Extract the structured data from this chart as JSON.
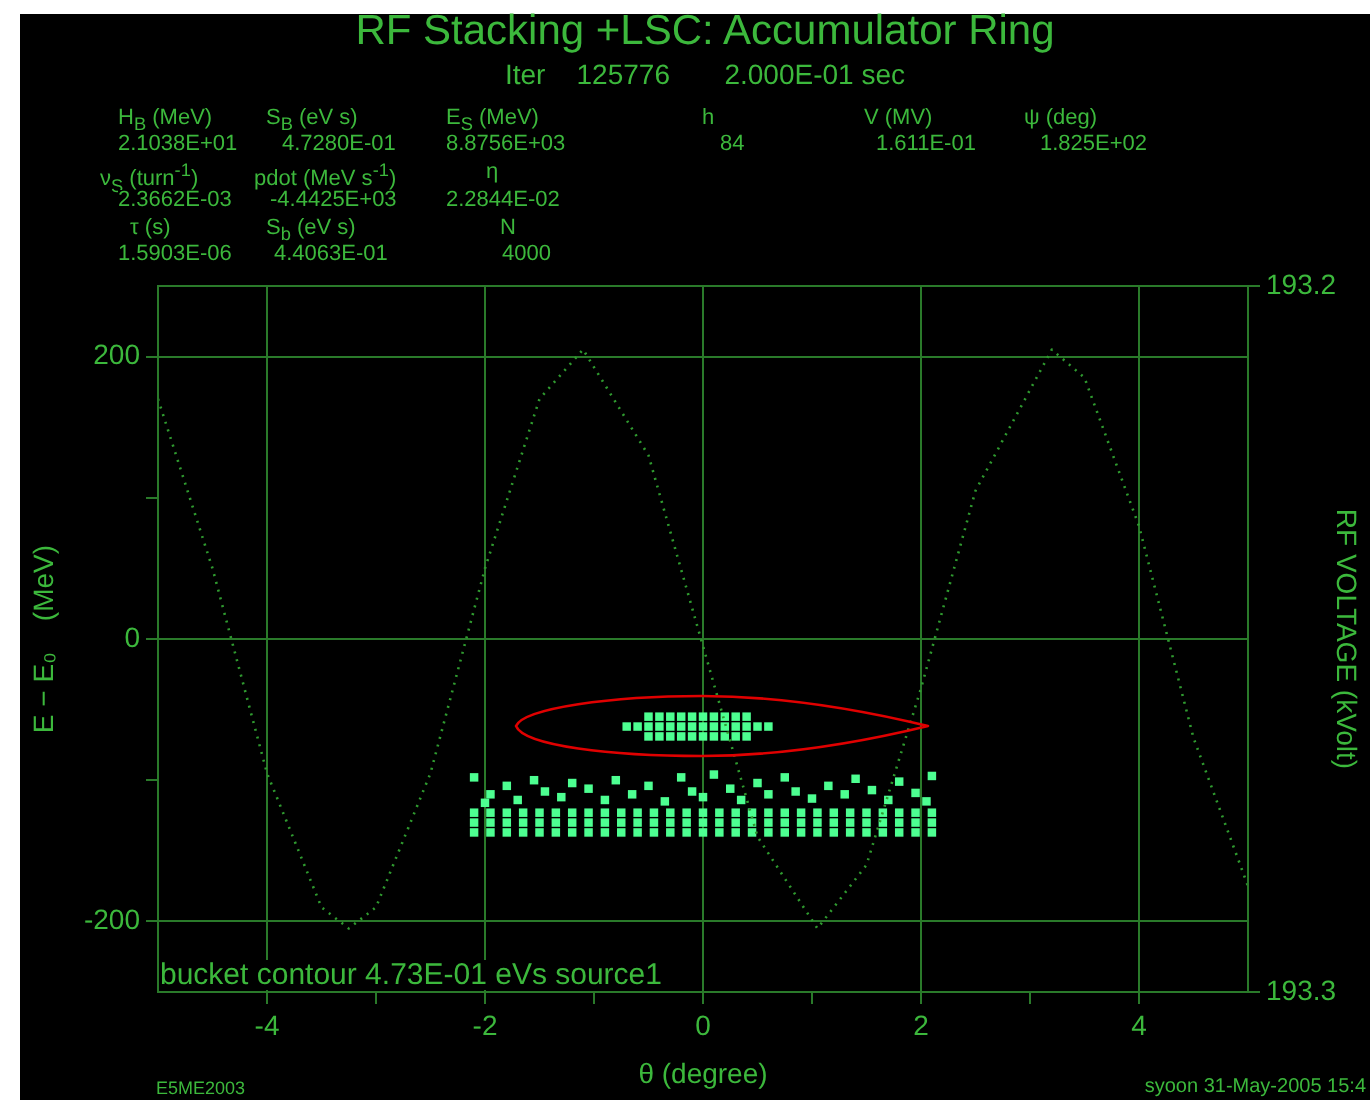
{
  "chart_data": {
    "type": "scatter",
    "title": "RF Stacking +LSC: Accumulator Ring",
    "subtitle": "Iter    125776       2.000E-01 sec",
    "xlabel": "θ (degree)",
    "ylabel": "E − E₀    (MeV)",
    "y2label": "RF VOLTAGE (kVolt)",
    "annotations": [
      "H$_{B}$ (MeV)",
      "S$_{B}$ (eV s)",
      "E$_{S}$ (MeV)",
      "h",
      "V (MV)",
      "ψ (deg)",
      "2.1038E+01",
      "4.7280E-01",
      "8.8756E+03",
      "84",
      "1.611E-01",
      "1.825E+02",
      "ν$_{S}$ (turn$^{-1}$)",
      "pdot (MeV s$^{-1}$)",
      "η",
      "2.3662E-03",
      "-4.4425E+03",
      "2.2844E-02",
      "τ (s)",
      "S$_{b}$ (eV s)",
      "N",
      "1.5903E-06",
      "4.4063E-01",
      "4000",
      "bucket contour 4.73E-01 eVs source1",
      "E5ME2003",
      "syoon 31-May-2005 15:4"
    ],
    "xlim": [
      -5,
      5
    ],
    "xticks": [
      -4,
      {
        "value": -3,
        "label": null
      },
      -2,
      {
        "value": -1,
        "label": null
      },
      0,
      {
        "value": 1,
        "label": null
      },
      2,
      {
        "value": 3,
        "label": null
      },
      4
    ],
    "ylim": [
      -250,
      250
    ],
    "yticks": [
      -200,
      {
        "value": -100,
        "label": null
      },
      0,
      {
        "value": 100,
        "label": null
      },
      200
    ],
    "y2lim": [
      193.3,
      193.2
    ],
    "y2ticks": [
      193.2,
      193.3
    ],
    "grid": true,
    "series": [
      {
        "type": "line",
        "axis": "y2",
        "color": "#2f9a2f",
        "marker": "none",
        "line_style": "dotted",
        "x": [
          -5,
          -4.5,
          -4,
          -3.5,
          -3.25,
          -3,
          -2.5,
          -2,
          -1.5,
          -1.1,
          -0.5,
          0,
          0.5,
          1.05,
          1.5,
          2,
          2.5,
          3.2,
          3.5,
          4,
          4.5,
          5
        ],
        "values": [
          193.216,
          193.24,
          193.269,
          193.288,
          193.291,
          193.288,
          193.269,
          193.24,
          193.216,
          193.209,
          193.224,
          193.251,
          193.278,
          193.291,
          193.282,
          193.257,
          193.229,
          193.209,
          193.213,
          193.234,
          193.264,
          193.285
        ]
      },
      {
        "color": "#4dff91",
        "marker": "square",
        "x": [
          -0.5,
          -0.4,
          -0.3,
          -0.2,
          -0.1,
          0,
          0.1,
          0.2,
          0.3,
          0.4,
          -0.7,
          -0.6,
          -0.5,
          -0.4,
          -0.3,
          -0.2,
          -0.1,
          0,
          0.1,
          0.2,
          0.3,
          0.4,
          0.5,
          0.6,
          -0.5,
          -0.4,
          -0.3,
          -0.2,
          -0.1,
          0,
          0.1,
          0.2,
          0.3,
          0.4
        ],
        "values": [
          -55,
          -55,
          -55,
          -55,
          -55,
          -55,
          -55,
          -55,
          -55,
          -55,
          -62,
          -62,
          -62,
          -62,
          -62,
          -62,
          -62,
          -62,
          -62,
          -62,
          -62,
          -62,
          -62,
          -62,
          -69,
          -69,
          -69,
          -69,
          -69,
          -69,
          -69,
          -69,
          -69,
          -69
        ]
      },
      {
        "color": "#4dff91",
        "marker": "square",
        "x": [
          -2.1,
          -1.95,
          -1.8,
          -1.65,
          -1.5,
          -1.35,
          -1.2,
          -1.05,
          -0.9,
          -0.75,
          -0.6,
          -0.45,
          -0.3,
          -0.15,
          0,
          0.15,
          0.3,
          0.45,
          0.6,
          0.75,
          0.9,
          1.05,
          1.2,
          1.35,
          1.5,
          1.65,
          1.8,
          1.95,
          2.1,
          -2.1,
          -1.95,
          -1.8,
          -1.65,
          -1.5,
          -1.35,
          -1.2,
          -1.05,
          -0.9,
          -0.75,
          -0.6,
          -0.45,
          -0.3,
          -0.15,
          0,
          0.15,
          0.3,
          0.45,
          0.6,
          0.75,
          0.9,
          1.05,
          1.2,
          1.35,
          1.5,
          1.65,
          1.8,
          1.95,
          2.1,
          -2.1,
          -1.95,
          -1.8,
          -1.65,
          -1.5,
          -1.35,
          -1.2,
          -1.05,
          -0.9,
          -0.75,
          -0.6,
          -0.45,
          -0.3,
          -0.15,
          0,
          0.15,
          0.3,
          0.45,
          0.6,
          0.75,
          0.9,
          1.05,
          1.2,
          1.35,
          1.5,
          1.65,
          1.8,
          1.95,
          2.1
        ],
        "values": [
          -123,
          -123,
          -123,
          -123,
          -123,
          -123,
          -123,
          -123,
          -123,
          -123,
          -123,
          -123,
          -123,
          -123,
          -123,
          -123,
          -123,
          -123,
          -123,
          -123,
          -123,
          -123,
          -123,
          -123,
          -123,
          -123,
          -123,
          -123,
          -123,
          -130,
          -130,
          -130,
          -130,
          -130,
          -130,
          -130,
          -130,
          -130,
          -130,
          -130,
          -130,
          -130,
          -130,
          -130,
          -130,
          -130,
          -130,
          -130,
          -130,
          -130,
          -130,
          -130,
          -130,
          -130,
          -130,
          -130,
          -130,
          -130,
          -137,
          -137,
          -137,
          -137,
          -137,
          -137,
          -137,
          -137,
          -137,
          -137,
          -137,
          -137,
          -137,
          -137,
          -137,
          -137,
          -137,
          -137,
          -137,
          -137,
          -137,
          -137,
          -137,
          -137,
          -137,
          -137,
          -137,
          -137,
          -137
        ]
      },
      {
        "color": "#4dff91",
        "marker": "square",
        "x": [
          -2.1,
          -1.95,
          -1.8,
          -1.7,
          -1.55,
          -1.45,
          -1.3,
          -1.2,
          -1.05,
          -0.9,
          -0.8,
          -0.65,
          -0.5,
          -0.35,
          -0.2,
          -0.1,
          0,
          0.1,
          0.25,
          0.35,
          0.5,
          0.6,
          0.75,
          0.85,
          1,
          1.15,
          1.3,
          1.4,
          1.55,
          1.7,
          1.8,
          1.95,
          2.1,
          2.05,
          -2
        ],
        "values": [
          -98,
          -110,
          -104,
          -114,
          -100,
          -108,
          -112,
          -102,
          -106,
          -114,
          -100,
          -110,
          -104,
          -115,
          -98,
          -108,
          -112,
          -96,
          -106,
          -114,
          -102,
          -110,
          -98,
          -108,
          -113,
          -104,
          -110,
          -99,
          -107,
          -114,
          -101,
          -109,
          -97,
          -115,
          -116
        ]
      }
    ]
  }
}
